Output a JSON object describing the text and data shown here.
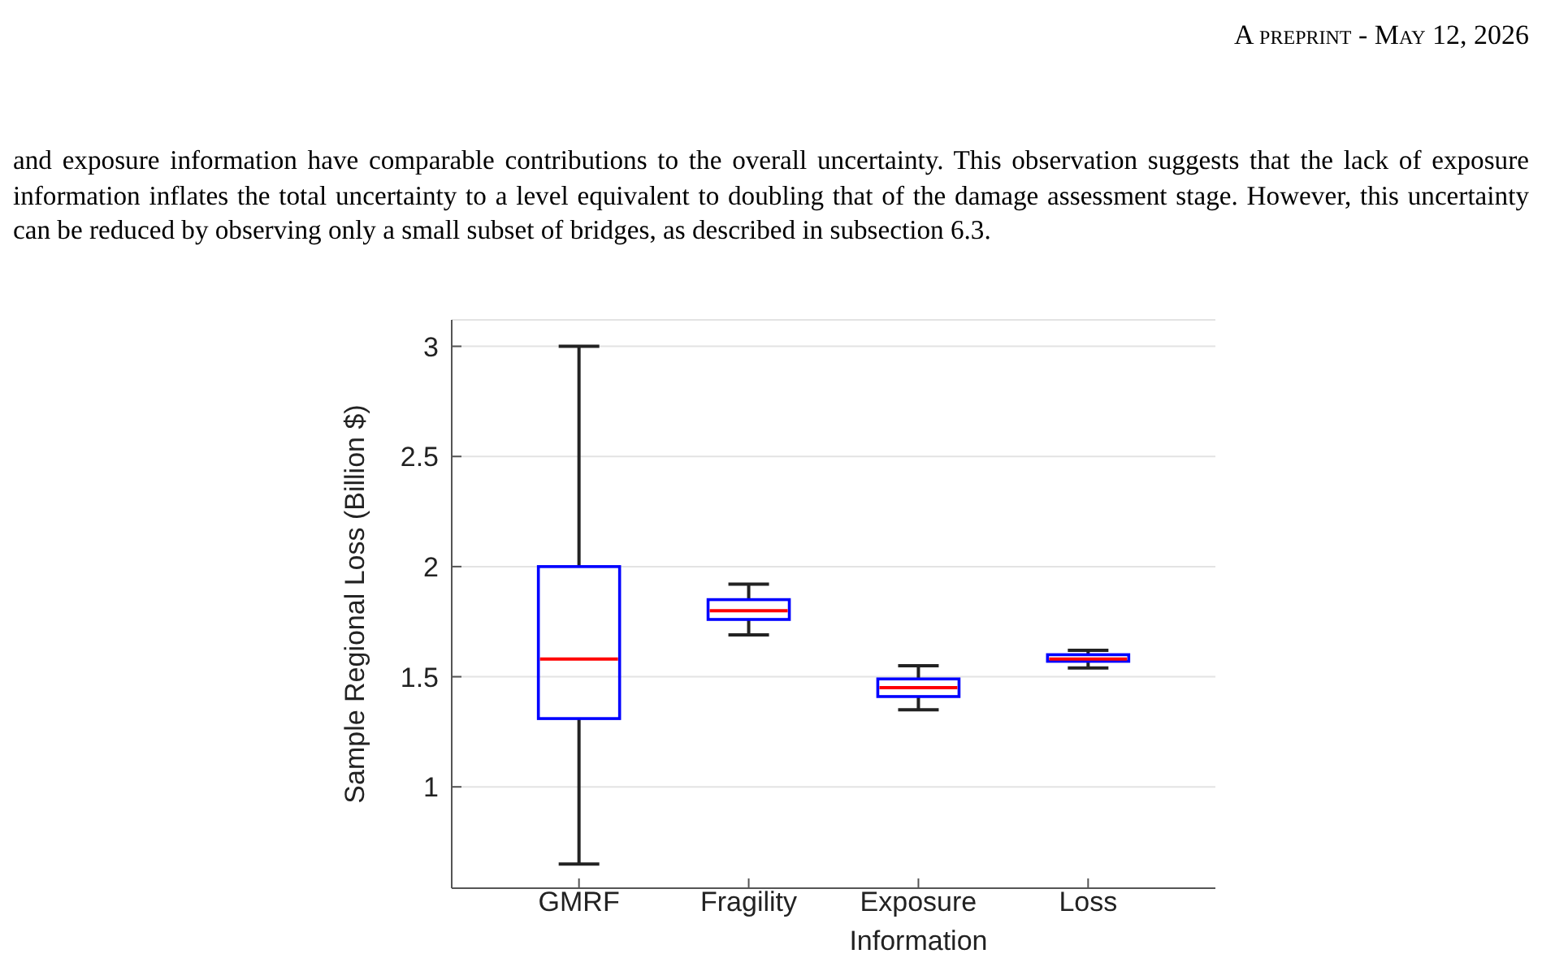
{
  "chart_data": {
    "type": "box",
    "ylabel": "Sample Regional Loss (Billion $)",
    "categories": [
      "GMRF",
      "Fragility",
      "Exposure Information",
      "Loss"
    ],
    "series": [
      {
        "color": "#0000ff",
        "boxes": [
          {
            "low": 0.65,
            "q1": 1.31,
            "median": 1.58,
            "q3": 2.0,
            "high": 3.0
          },
          {
            "low": 1.69,
            "q1": 1.76,
            "median": 1.8,
            "q3": 1.85,
            "high": 1.92
          },
          {
            "low": 1.35,
            "q1": 1.41,
            "median": 1.45,
            "q3": 1.49,
            "high": 1.55
          },
          {
            "low": 1.54,
            "q1": 1.57,
            "median": 1.58,
            "q3": 1.6,
            "high": 1.62
          }
        ]
      }
    ],
    "ylim": [
      0.54,
      3.12
    ],
    "yticks": [
      1,
      1.5,
      2,
      2.5,
      3
    ],
    "grid": "y",
    "annotations": [
      "A preprint - May 12, 2026",
      "and exposure information have comparable contributions to the overall uncertainty. This observation suggests that the lack of exposure information inflates the total uncertainty to a level equivalent to doubling that of the damage assessment stage. However, this uncertainty can be reduced by observing only a small subset of bridges, as described in subsection 6.3."
    ]
  }
}
